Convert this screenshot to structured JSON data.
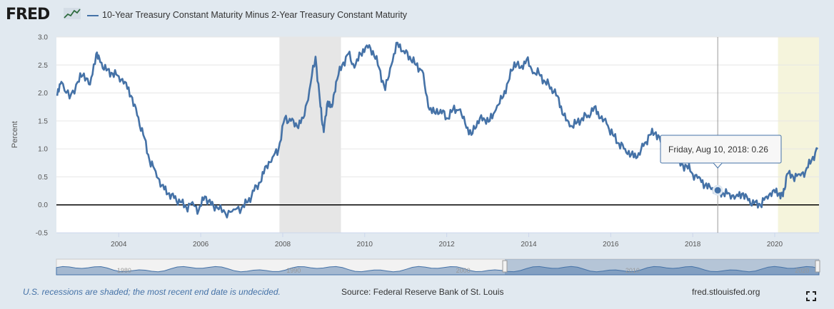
{
  "header": {
    "logo": "FRED",
    "legend_label": "10-Year Treasury Constant Maturity Minus 2-Year Treasury Constant Maturity"
  },
  "colors": {
    "series": "#4572a7",
    "recession": "#e6e6e6",
    "undecided": "#f5f4dc",
    "zero_line": "#000000"
  },
  "chart_data": {
    "type": "line",
    "title": "10-Year Treasury Constant Maturity Minus 2-Year Treasury Constant Maturity",
    "xlabel": "",
    "ylabel": "Percent",
    "xlim": [
      2002.48,
      2021.08
    ],
    "ylim": [
      -0.5,
      3.0
    ],
    "yticks": [
      -0.5,
      0.0,
      0.5,
      1.0,
      1.5,
      2.0,
      2.5,
      3.0
    ],
    "ytick_labels": [
      "-0.5",
      "0.0",
      "0.5",
      "1.0",
      "1.5",
      "2.0",
      "2.5",
      "3.0"
    ],
    "xticks": [
      2004,
      2006,
      2008,
      2010,
      2012,
      2014,
      2016,
      2018,
      2020
    ],
    "xtick_labels": [
      "2004",
      "2006",
      "2008",
      "2010",
      "2012",
      "2014",
      "2016",
      "2018",
      "2020"
    ],
    "recessions": [
      {
        "start": 2007.92,
        "end": 2009.42,
        "label": "recession"
      },
      {
        "start": 2020.08,
        "end": 2021.08,
        "label": "recession (end undecided)"
      }
    ],
    "series": [
      {
        "name": "10-Year Treasury Constant Maturity Minus 2-Year Treasury Constant Maturity",
        "x": [
          2002.5,
          2002.6,
          2002.8,
          2003.0,
          2003.15,
          2003.3,
          2003.45,
          2003.55,
          2003.7,
          2003.85,
          2004.0,
          2004.15,
          2004.3,
          2004.45,
          2004.6,
          2004.75,
          2004.9,
          2005.05,
          2005.2,
          2005.35,
          2005.5,
          2005.65,
          2005.8,
          2005.95,
          2006.1,
          2006.25,
          2006.4,
          2006.6,
          2006.8,
          2007.0,
          2007.15,
          2007.3,
          2007.45,
          2007.6,
          2007.75,
          2007.9,
          2008.05,
          2008.2,
          2008.35,
          2008.5,
          2008.65,
          2008.8,
          2008.92,
          2009.0,
          2009.1,
          2009.2,
          2009.3,
          2009.45,
          2009.6,
          2009.75,
          2009.9,
          2010.05,
          2010.2,
          2010.35,
          2010.5,
          2010.65,
          2010.8,
          2010.95,
          2011.1,
          2011.25,
          2011.4,
          2011.55,
          2011.7,
          2011.85,
          2012.0,
          2012.15,
          2012.3,
          2012.45,
          2012.6,
          2012.75,
          2012.9,
          2013.05,
          2013.2,
          2013.35,
          2013.5,
          2013.65,
          2013.8,
          2013.95,
          2014.1,
          2014.25,
          2014.4,
          2014.55,
          2014.7,
          2014.85,
          2015.0,
          2015.15,
          2015.3,
          2015.45,
          2015.6,
          2015.75,
          2015.9,
          2016.05,
          2016.2,
          2016.35,
          2016.5,
          2016.65,
          2016.8,
          2016.95,
          2017.1,
          2017.25,
          2017.4,
          2017.55,
          2017.7,
          2017.85,
          2018.0,
          2018.15,
          2018.3,
          2018.45,
          2018.61,
          2018.75,
          2018.9,
          2019.05,
          2019.2,
          2019.35,
          2019.5,
          2019.65,
          2019.8,
          2019.95,
          2020.1,
          2020.2,
          2020.3,
          2020.45,
          2020.6,
          2020.75,
          2020.9,
          2021.05
        ],
        "values": [
          1.95,
          2.2,
          1.9,
          2.2,
          2.35,
          2.15,
          2.7,
          2.55,
          2.4,
          2.35,
          2.3,
          2.2,
          1.95,
          1.6,
          1.25,
          0.8,
          0.6,
          0.35,
          0.2,
          0.12,
          0.05,
          -0.05,
          0.05,
          -0.1,
          0.15,
          0.0,
          -0.05,
          -0.15,
          -0.08,
          -0.05,
          0.05,
          0.25,
          0.4,
          0.7,
          0.85,
          1.0,
          1.55,
          1.5,
          1.4,
          1.55,
          2.05,
          2.65,
          1.75,
          1.3,
          1.85,
          1.75,
          2.2,
          2.5,
          2.7,
          2.45,
          2.7,
          2.85,
          2.75,
          2.45,
          2.05,
          2.5,
          2.9,
          2.75,
          2.65,
          2.5,
          2.4,
          1.75,
          1.65,
          1.7,
          1.55,
          1.7,
          1.7,
          1.45,
          1.25,
          1.5,
          1.55,
          1.5,
          1.7,
          1.9,
          2.2,
          2.55,
          2.45,
          2.6,
          2.35,
          2.35,
          2.2,
          2.1,
          1.95,
          1.6,
          1.4,
          1.45,
          1.55,
          1.6,
          1.75,
          1.55,
          1.45,
          1.25,
          1.1,
          1.0,
          0.9,
          0.85,
          1.05,
          1.25,
          1.3,
          1.1,
          0.95,
          0.95,
          0.7,
          0.7,
          0.55,
          0.5,
          0.35,
          0.28,
          0.26,
          0.2,
          0.2,
          0.15,
          0.2,
          0.08,
          0.02,
          0.0,
          0.15,
          0.25,
          0.2,
          0.15,
          0.55,
          0.5,
          0.55,
          0.6,
          0.8,
          1.0
        ]
      }
    ],
    "tooltip": {
      "text": "Friday, Aug 10, 2018: 0.26",
      "x": 2018.61,
      "y": 0.26
    },
    "navigator": {
      "range": [
        1976,
        2021
      ],
      "tick_labels": [
        "1980",
        "1990",
        "2000",
        "2010",
        "2020"
      ],
      "tick_values": [
        1980,
        1990,
        2000,
        2010,
        2020
      ]
    }
  },
  "footer": {
    "note": "U.S. recessions are shaded; the most recent end date is undecided.",
    "source": "Source: Federal Reserve Bank of St. Louis",
    "url": "fred.stlouisfed.org"
  }
}
